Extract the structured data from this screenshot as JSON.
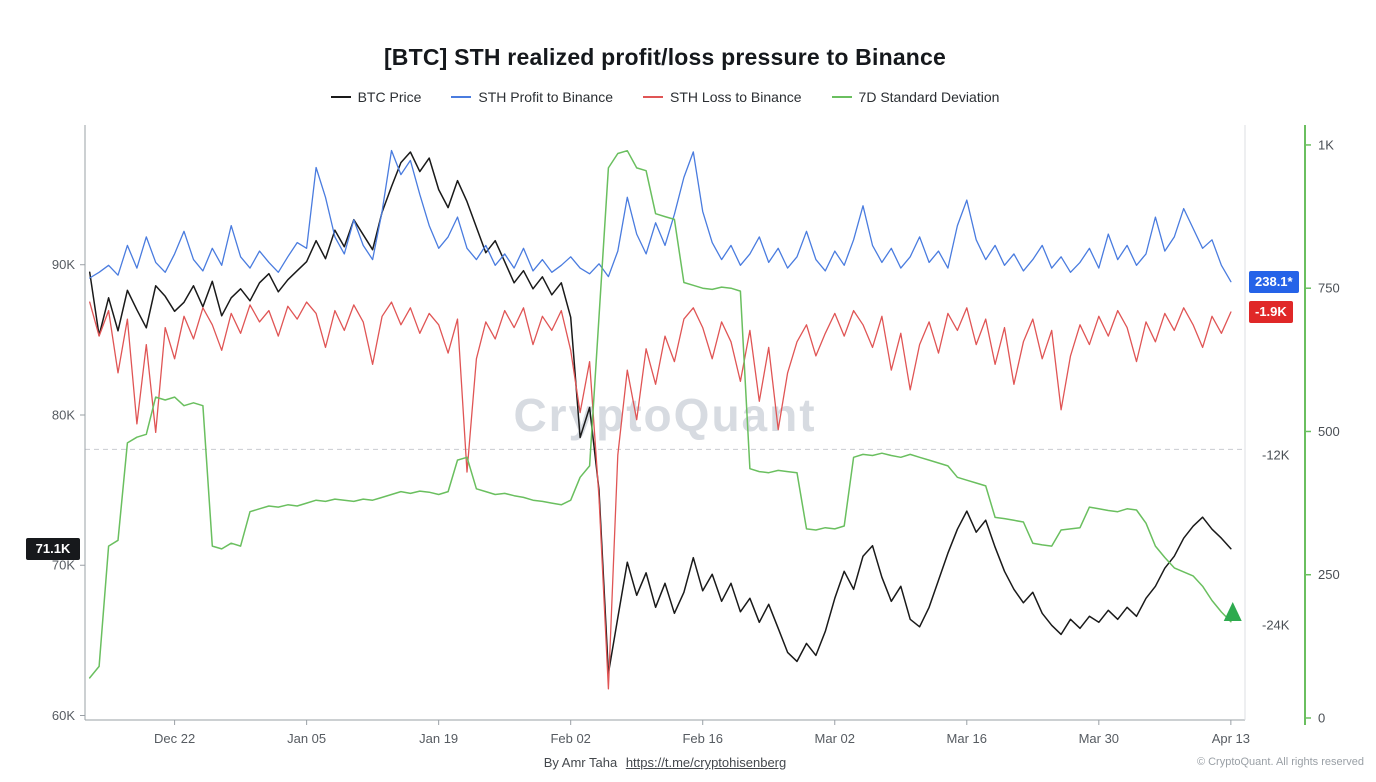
{
  "watermark": "CryptoQuant",
  "badges": {
    "price_last": "71.1K",
    "profit_last": "238.1*",
    "loss_last": "-1.9K"
  },
  "footer": {
    "credit": "By Amr Taha",
    "link": "https://t.me/cryptohisenberg",
    "copyright": "© CryptoQuant. All rights reserved"
  },
  "legend": [
    {
      "slug": "btc-price",
      "label": "BTC Price",
      "color": "#1a1a1a"
    },
    {
      "slug": "sth-profit",
      "label": "STH Profit to Binance",
      "color": "#4a7cdf"
    },
    {
      "slug": "sth-loss",
      "label": "STH Loss to Binance",
      "color": "#e05555"
    },
    {
      "slug": "7d-std",
      "label": "7D Standard Deviation",
      "color": "#6abf5f"
    }
  ],
  "chart_data": {
    "type": "line",
    "title": "[BTC] STH realized profit/loss pressure to Binance",
    "xlabel": "",
    "ylabel": "",
    "grid": "single dashed horizontal line near -12K flow level",
    "legend_position": "top-center",
    "x_range": [
      -0.5,
      122.5
    ],
    "x_ticks": [
      {
        "label": "Dec 22",
        "day": 9
      },
      {
        "label": "Jan 05",
        "day": 23
      },
      {
        "label": "Jan 19",
        "day": 37
      },
      {
        "label": "Feb 02",
        "day": 51
      },
      {
        "label": "Feb 16",
        "day": 65
      },
      {
        "label": "Mar 02",
        "day": 79
      },
      {
        "label": "Mar 16",
        "day": 93
      },
      {
        "label": "Mar 30",
        "day": 107
      },
      {
        "label": "Apr 13",
        "day": 121
      }
    ],
    "axes": {
      "price": {
        "side": "left",
        "range": [
          59.7,
          99.3
        ],
        "unit": "K USD",
        "ticks": [
          {
            "label": "90K",
            "value": 90
          },
          {
            "label": "80K",
            "value": 80
          },
          {
            "label": "70K",
            "value": 70
          },
          {
            "label": "60K",
            "value": 60
          }
        ]
      },
      "flow": {
        "side": "right-inner",
        "range": [
          -30700,
          11300
        ],
        "ticks": [
          {
            "label": "-12K",
            "value": -12000
          },
          {
            "label": "-24K",
            "value": -24000
          }
        ]
      },
      "std": {
        "side": "right-outer",
        "range": [
          -3.5,
          1034.8
        ],
        "line_color": "#6abf5f",
        "ticks": [
          {
            "label": "1K",
            "value": 1000
          },
          {
            "label": "750",
            "value": 750
          },
          {
            "label": "500",
            "value": 500
          },
          {
            "label": "250",
            "value": 250
          },
          {
            "label": "0",
            "value": 0
          }
        ]
      }
    },
    "dashed_line": {
      "axis": "flow",
      "value": -11600
    },
    "marker": {
      "day": 121.2,
      "value": 185,
      "axis": "std",
      "shape": "triangle-up",
      "color": "#2eaa4f"
    },
    "series": [
      {
        "name": "BTC Price",
        "slug": "btc-price",
        "axis": "price",
        "color": "#1a1a1a",
        "width": 1.5,
        "values": [
          89.5,
          85.3,
          87.8,
          85.6,
          88.3,
          87.0,
          85.8,
          88.6,
          87.9,
          86.9,
          87.5,
          88.6,
          87.2,
          88.9,
          86.6,
          87.8,
          88.4,
          87.6,
          88.8,
          89.4,
          88.2,
          89.0,
          89.6,
          90.2,
          91.6,
          90.4,
          92.3,
          91.2,
          93.0,
          92.0,
          91.0,
          93.5,
          95.2,
          96.8,
          97.5,
          96.2,
          97.1,
          95.0,
          93.8,
          95.6,
          94.2,
          92.5,
          90.8,
          91.6,
          90.2,
          88.8,
          89.6,
          88.4,
          89.2,
          88.0,
          88.8,
          86.5,
          78.5,
          80.5,
          75.0,
          62.8,
          66.5,
          70.2,
          68.0,
          69.5,
          67.2,
          68.8,
          66.8,
          68.2,
          70.5,
          68.3,
          69.4,
          67.6,
          68.8,
          66.9,
          67.8,
          66.2,
          67.4,
          65.8,
          64.2,
          63.6,
          64.8,
          64.0,
          65.6,
          67.8,
          69.6,
          68.4,
          70.6,
          71.3,
          69.2,
          67.6,
          68.6,
          66.4,
          65.9,
          67.2,
          69.0,
          70.8,
          72.4,
          73.6,
          72.2,
          73.0,
          71.2,
          69.6,
          68.4,
          67.5,
          68.2,
          66.8,
          66.0,
          65.4,
          66.4,
          65.8,
          66.6,
          66.2,
          67.0,
          66.4,
          67.2,
          66.6,
          67.8,
          68.6,
          69.8,
          70.6,
          71.8,
          72.6,
          73.2,
          72.4,
          71.8,
          71.1
        ]
      },
      {
        "name": "STH Profit to Binance",
        "slug": "sth-profit",
        "axis": "flow",
        "color": "#4a7cdf",
        "width": 1.3,
        "values": [
          500,
          900,
          1400,
          700,
          2800,
          1200,
          3400,
          1600,
          900,
          2200,
          3800,
          1800,
          1000,
          2600,
          1400,
          4200,
          2000,
          1200,
          2400,
          1600,
          900,
          2000,
          3000,
          2600,
          8300,
          6200,
          3400,
          2200,
          4600,
          2800,
          1800,
          5200,
          9500,
          7800,
          8800,
          6400,
          4200,
          2600,
          3400,
          4800,
          2600,
          1800,
          2800,
          1400,
          2200,
          1200,
          2600,
          1000,
          1800,
          900,
          1400,
          2000,
          1200,
          800,
          1500,
          600,
          2400,
          6200,
          3600,
          2200,
          4400,
          2800,
          5000,
          7600,
          9400,
          5200,
          3000,
          1800,
          2800,
          1400,
          2200,
          3400,
          1600,
          2600,
          1200,
          2000,
          3800,
          1800,
          1000,
          2400,
          1400,
          3200,
          5600,
          2800,
          1600,
          2600,
          1200,
          2000,
          3400,
          1600,
          2400,
          1200,
          4200,
          6000,
          3200,
          1800,
          2800,
          1400,
          2200,
          1000,
          1800,
          2800,
          1200,
          2000,
          900,
          1600,
          2600,
          1200,
          3600,
          1800,
          2800,
          1400,
          2200,
          4800,
          2400,
          3400,
          5400,
          4000,
          2600,
          3200,
          1400,
          238.1
        ]
      },
      {
        "name": "STH Loss to Binance",
        "slug": "sth-loss",
        "axis": "flow",
        "color": "#e05555",
        "width": 1.3,
        "values": [
          -1200,
          -3600,
          -1800,
          -6200,
          -2400,
          -9800,
          -4200,
          -10400,
          -3000,
          -5200,
          -2200,
          -3800,
          -1600,
          -2800,
          -4600,
          -2000,
          -3400,
          -1400,
          -2600,
          -1800,
          -3600,
          -1500,
          -2400,
          -1200,
          -2000,
          -4400,
          -1800,
          -3200,
          -1400,
          -2600,
          -5600,
          -2200,
          -1200,
          -2800,
          -1600,
          -3400,
          -2000,
          -2800,
          -4800,
          -2400,
          -13200,
          -5200,
          -2600,
          -3800,
          -1800,
          -3000,
          -1600,
          -4200,
          -2200,
          -3200,
          -1800,
          -4600,
          -9000,
          -5400,
          -15000,
          -28500,
          -12000,
          -6000,
          -9500,
          -4500,
          -7000,
          -3600,
          -5400,
          -2400,
          -1600,
          -3000,
          -5200,
          -2600,
          -4000,
          -6800,
          -3200,
          -8200,
          -4400,
          -10200,
          -6200,
          -4000,
          -2800,
          -5000,
          -3400,
          -2000,
          -3600,
          -1800,
          -2800,
          -4400,
          -2200,
          -6000,
          -3400,
          -7400,
          -4200,
          -2600,
          -4800,
          -2000,
          -3200,
          -1600,
          -4200,
          -2400,
          -5600,
          -3000,
          -7000,
          -4000,
          -2400,
          -5200,
          -3200,
          -8800,
          -5000,
          -2800,
          -4200,
          -2200,
          -3600,
          -1800,
          -3000,
          -5400,
          -2600,
          -4000,
          -2000,
          -3200,
          -1600,
          -2800,
          -4400,
          -2200,
          -3400,
          -1900
        ]
      },
      {
        "name": "7D Standard Deviation",
        "slug": "7d-std",
        "axis": "std",
        "color": "#6abf5f",
        "width": 1.5,
        "values": [
          70,
          90,
          300,
          310,
          480,
          490,
          495,
          560,
          555,
          560,
          545,
          550,
          545,
          300,
          295,
          305,
          300,
          360,
          365,
          370,
          368,
          372,
          370,
          375,
          380,
          378,
          382,
          380,
          378,
          382,
          380,
          385,
          390,
          395,
          392,
          396,
          394,
          390,
          395,
          450,
          455,
          400,
          395,
          390,
          392,
          388,
          385,
          380,
          378,
          375,
          372,
          380,
          420,
          440,
          700,
          960,
          985,
          990,
          960,
          955,
          880,
          875,
          870,
          760,
          755,
          750,
          748,
          752,
          750,
          745,
          435,
          430,
          428,
          432,
          430,
          428,
          330,
          328,
          332,
          330,
          335,
          455,
          460,
          458,
          462,
          458,
          455,
          460,
          455,
          450,
          445,
          440,
          420,
          415,
          410,
          405,
          350,
          348,
          345,
          342,
          305,
          302,
          300,
          328,
          330,
          332,
          368,
          365,
          362,
          360,
          365,
          363,
          340,
          300,
          280,
          262,
          255,
          248,
          230,
          205,
          185,
          168
        ]
      }
    ]
  }
}
